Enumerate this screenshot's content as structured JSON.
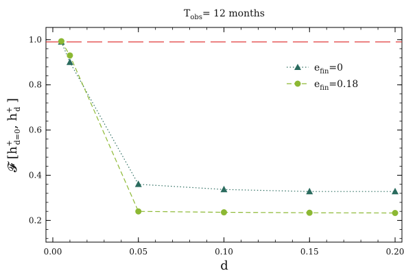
{
  "chart_data": {
    "type": "line",
    "title": "T",
    "title_sub": "obs",
    "title_rest": "= 12 months",
    "xlabel": "d",
    "ylabel_parts": {
      "prefix": "𝓕 [h",
      "sup1": "+",
      "sub1": "d=0",
      "mid": ", h",
      "sup2": "+",
      "sub2": "d",
      "suffix": " ]"
    },
    "xlim": [
      -0.004,
      0.204
    ],
    "ylim": [
      0.104,
      1.054
    ],
    "xticks": [
      0.0,
      0.05,
      0.1,
      0.15,
      0.2
    ],
    "xtick_labels": [
      "0.00",
      "0.05",
      "0.10",
      "0.15",
      "0.20"
    ],
    "yticks": [
      0.2,
      0.4,
      0.6,
      0.8,
      1.0
    ],
    "ytick_labels": [
      "0.2",
      "0.4",
      "0.6",
      "0.8",
      "1.0"
    ],
    "reference_line": {
      "y": 0.99,
      "color": "#dd2222",
      "style": "dashed"
    },
    "series": [
      {
        "name_main": "e",
        "name_sub": "fin",
        "name_rest": "=0",
        "marker": "triangle",
        "color": "#2a6b5e",
        "linestyle": "dotted",
        "x": [
          0.005,
          0.01,
          0.05,
          0.1,
          0.15,
          0.2
        ],
        "y": [
          0.99,
          0.9,
          0.36,
          0.337,
          0.328,
          0.328
        ]
      },
      {
        "name_main": "e",
        "name_sub": "fin",
        "name_rest": "=0.18",
        "marker": "circle",
        "color": "#8cb833",
        "linestyle": "dashed",
        "x": [
          0.005,
          0.01,
          0.05,
          0.1,
          0.15,
          0.2
        ],
        "y": [
          0.993,
          0.93,
          0.24,
          0.236,
          0.234,
          0.233
        ]
      }
    ],
    "legend_position": "upper-right",
    "grid": false
  }
}
